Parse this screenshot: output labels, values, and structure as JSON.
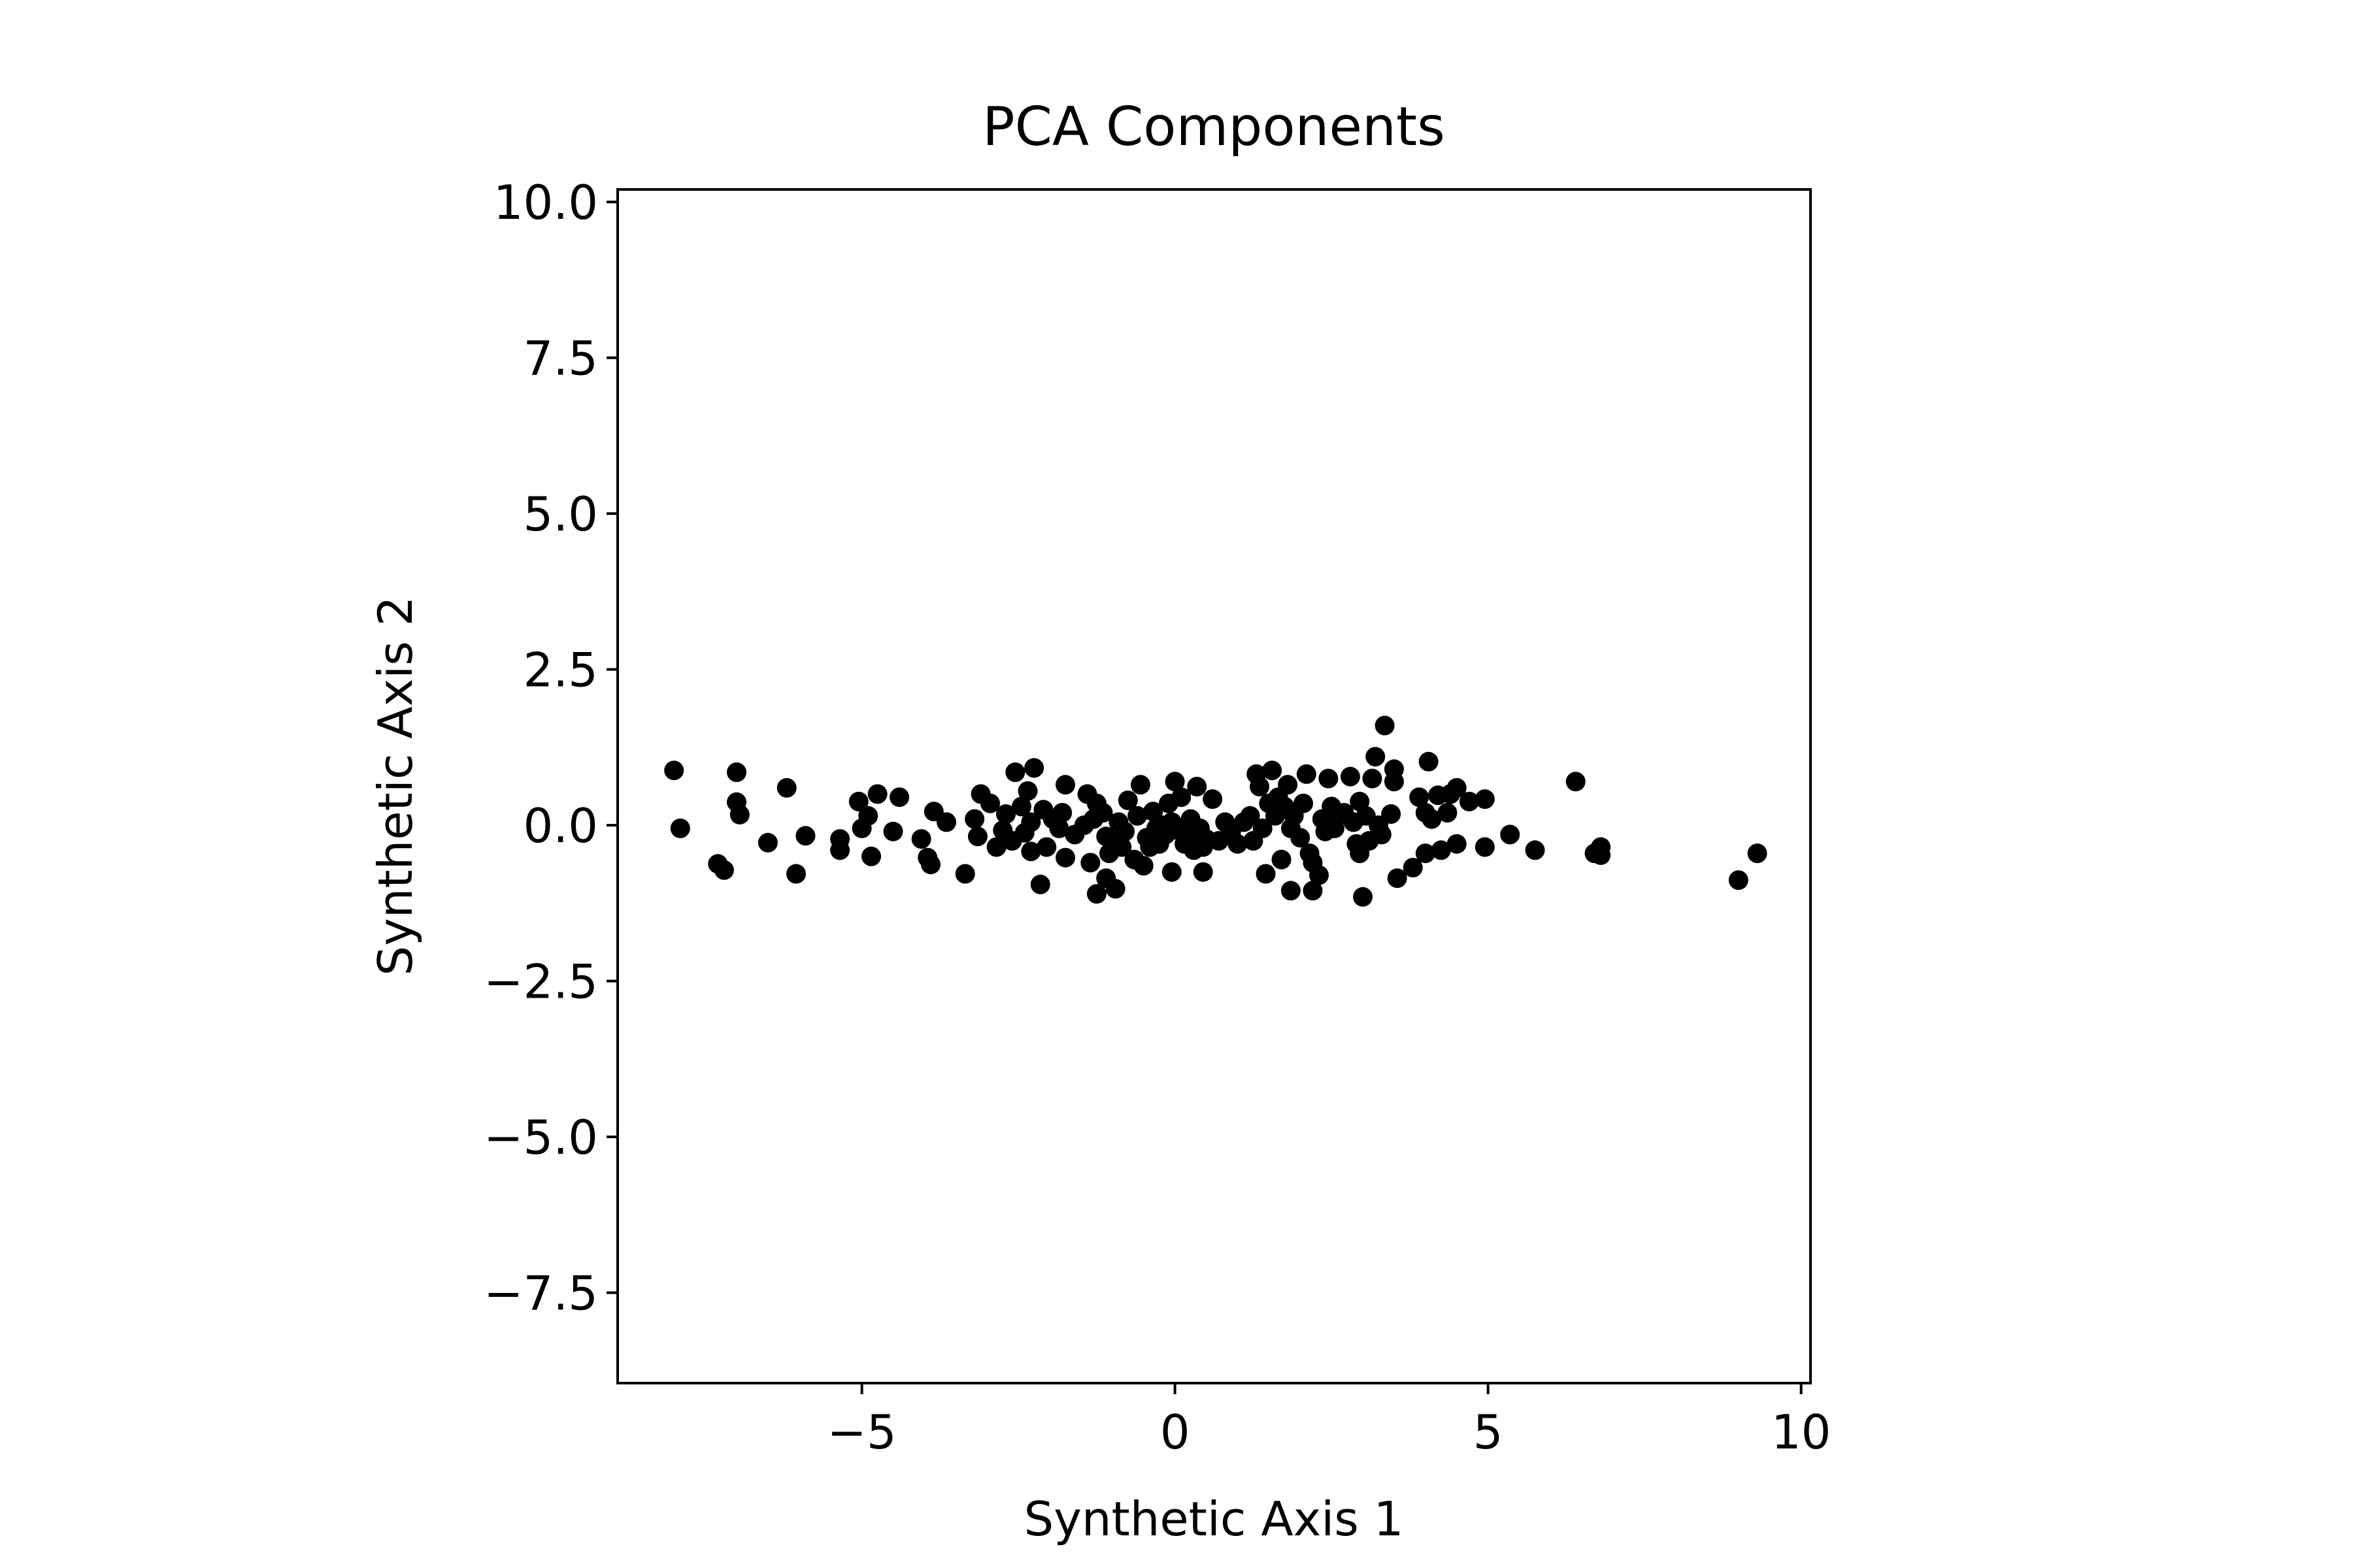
{
  "chart_data": {
    "type": "scatter",
    "title": "PCA Components",
    "xlabel": "Synthetic Axis 1",
    "ylabel": "Synthetic Axis 2",
    "xlim": [
      -8.9,
      10.15
    ],
    "ylim": [
      -8.95,
      10.2
    ],
    "xticks": [
      -5,
      0,
      5,
      10
    ],
    "xtick_labels": [
      "−5",
      "0",
      "5",
      "10"
    ],
    "yticks": [
      -7.5,
      -5.0,
      -2.5,
      0.0,
      2.5,
      5.0,
      7.5,
      10.0
    ],
    "ytick_labels": [
      "−7.5",
      "−5.0",
      "−2.5",
      "0.0",
      "2.5",
      "5.0",
      "7.5",
      "10.0"
    ],
    "grid": false,
    "legend": "none",
    "marker_color": "#000000",
    "points": [
      [
        -8.0,
        0.88
      ],
      [
        -7.9,
        -0.05
      ],
      [
        -7.3,
        -0.62
      ],
      [
        -7.2,
        -0.72
      ],
      [
        -7.0,
        0.85
      ],
      [
        -7.0,
        0.37
      ],
      [
        -6.95,
        0.17
      ],
      [
        -6.5,
        -0.28
      ],
      [
        -6.2,
        0.6
      ],
      [
        -6.05,
        -0.78
      ],
      [
        -5.9,
        -0.17
      ],
      [
        -5.35,
        -0.22
      ],
      [
        -5.35,
        -0.4
      ],
      [
        -5.05,
        0.38
      ],
      [
        -5.0,
        -0.05
      ],
      [
        -4.9,
        0.15
      ],
      [
        -4.85,
        -0.5
      ],
      [
        -4.75,
        0.5
      ],
      [
        -4.5,
        -0.1
      ],
      [
        -4.4,
        0.45
      ],
      [
        -4.05,
        -0.22
      ],
      [
        -3.95,
        -0.52
      ],
      [
        -3.9,
        -0.63
      ],
      [
        -3.85,
        0.22
      ],
      [
        -3.65,
        0.05
      ],
      [
        -3.35,
        -0.78
      ],
      [
        -3.2,
        0.1
      ],
      [
        -3.15,
        -0.18
      ],
      [
        -3.1,
        0.5
      ],
      [
        -2.95,
        0.35
      ],
      [
        -2.85,
        -0.35
      ],
      [
        -2.75,
        -0.08
      ],
      [
        -2.7,
        0.18
      ],
      [
        -2.6,
        -0.25
      ],
      [
        -2.55,
        0.85
      ],
      [
        -2.45,
        0.3
      ],
      [
        -2.4,
        -0.12
      ],
      [
        -2.35,
        0.55
      ],
      [
        -2.3,
        0.05
      ],
      [
        -2.3,
        -0.42
      ],
      [
        -2.25,
        0.92
      ],
      [
        -2.15,
        -0.95
      ],
      [
        -2.1,
        0.25
      ],
      [
        -2.05,
        -0.35
      ],
      [
        -1.95,
        0.1
      ],
      [
        -1.85,
        -0.05
      ],
      [
        -1.8,
        0.2
      ],
      [
        -1.75,
        0.65
      ],
      [
        -1.75,
        -0.52
      ],
      [
        -1.6,
        -0.15
      ],
      [
        -1.45,
        0.0
      ],
      [
        -1.4,
        0.5
      ],
      [
        -1.35,
        -0.6
      ],
      [
        -1.3,
        0.1
      ],
      [
        -1.25,
        0.35
      ],
      [
        -1.25,
        -1.1
      ],
      [
        -1.15,
        0.2
      ],
      [
        -1.1,
        -0.18
      ],
      [
        -1.1,
        -0.85
      ],
      [
        -1.05,
        -0.45
      ],
      [
        -1.0,
        -0.25
      ],
      [
        -0.95,
        -1.02
      ],
      [
        -0.9,
        0.05
      ],
      [
        -0.85,
        -0.35
      ],
      [
        -0.8,
        -0.1
      ],
      [
        -0.75,
        0.4
      ],
      [
        -0.65,
        -0.55
      ],
      [
        -0.6,
        0.15
      ],
      [
        -0.55,
        0.65
      ],
      [
        -0.5,
        -0.65
      ],
      [
        -0.45,
        -0.2
      ],
      [
        -0.4,
        -0.35
      ],
      [
        -0.35,
        0.22
      ],
      [
        -0.3,
        -0.05
      ],
      [
        -0.25,
        -0.3
      ],
      [
        -0.2,
        0.0
      ],
      [
        -0.15,
        -0.15
      ],
      [
        -0.1,
        0.35
      ],
      [
        -0.05,
        -0.75
      ],
      [
        -0.05,
        0.05
      ],
      [
        0.0,
        0.7
      ],
      [
        0.05,
        -0.08
      ],
      [
        0.1,
        0.45
      ],
      [
        0.15,
        -0.3
      ],
      [
        0.2,
        -0.2
      ],
      [
        0.25,
        0.1
      ],
      [
        0.3,
        -0.4
      ],
      [
        0.35,
        0.62
      ],
      [
        0.4,
        -0.05
      ],
      [
        0.45,
        -0.35
      ],
      [
        0.45,
        -0.75
      ],
      [
        0.5,
        -0.22
      ],
      [
        0.6,
        0.42
      ],
      [
        0.7,
        -0.25
      ],
      [
        0.8,
        0.05
      ],
      [
        0.9,
        -0.1
      ],
      [
        1.0,
        -0.3
      ],
      [
        1.1,
        0.05
      ],
      [
        1.2,
        0.15
      ],
      [
        1.25,
        -0.25
      ],
      [
        1.3,
        0.82
      ],
      [
        1.35,
        0.62
      ],
      [
        1.4,
        -0.05
      ],
      [
        1.45,
        -0.78
      ],
      [
        1.5,
        0.35
      ],
      [
        1.55,
        0.88
      ],
      [
        1.6,
        0.15
      ],
      [
        1.65,
        0.45
      ],
      [
        1.7,
        -0.55
      ],
      [
        1.75,
        0.3
      ],
      [
        1.8,
        0.65
      ],
      [
        1.85,
        -1.05
      ],
      [
        1.85,
        -0.05
      ],
      [
        1.9,
        0.15
      ],
      [
        2.0,
        -0.2
      ],
      [
        2.05,
        0.35
      ],
      [
        2.1,
        0.82
      ],
      [
        2.15,
        -0.45
      ],
      [
        2.2,
        -0.6
      ],
      [
        2.2,
        -1.05
      ],
      [
        2.3,
        -0.8
      ],
      [
        2.35,
        0.1
      ],
      [
        2.4,
        -0.1
      ],
      [
        2.45,
        0.75
      ],
      [
        2.5,
        0.3
      ],
      [
        2.55,
        -0.05
      ],
      [
        2.6,
        0.15
      ],
      [
        2.7,
        0.2
      ],
      [
        2.8,
        0.78
      ],
      [
        2.85,
        0.05
      ],
      [
        2.9,
        -0.3
      ],
      [
        2.95,
        -0.45
      ],
      [
        2.95,
        0.38
      ],
      [
        3.0,
        -1.15
      ],
      [
        3.05,
        0.15
      ],
      [
        3.1,
        -0.25
      ],
      [
        3.15,
        0.75
      ],
      [
        3.2,
        1.1
      ],
      [
        3.25,
        0.0
      ],
      [
        3.3,
        -0.15
      ],
      [
        3.35,
        1.6
      ],
      [
        3.45,
        0.18
      ],
      [
        3.5,
        0.9
      ],
      [
        3.5,
        0.7
      ],
      [
        3.55,
        -0.85
      ],
      [
        3.8,
        -0.68
      ],
      [
        3.9,
        0.45
      ],
      [
        4.0,
        -0.45
      ],
      [
        4.0,
        0.2
      ],
      [
        4.05,
        1.02
      ],
      [
        4.1,
        0.1
      ],
      [
        4.2,
        0.48
      ],
      [
        4.25,
        -0.4
      ],
      [
        4.35,
        0.2
      ],
      [
        4.4,
        0.5
      ],
      [
        4.5,
        -0.3
      ],
      [
        4.5,
        0.6
      ],
      [
        4.7,
        0.38
      ],
      [
        4.95,
        -0.35
      ],
      [
        4.95,
        0.42
      ],
      [
        5.35,
        -0.15
      ],
      [
        5.75,
        -0.4
      ],
      [
        6.4,
        0.7
      ],
      [
        6.7,
        -0.45
      ],
      [
        6.8,
        -0.35
      ],
      [
        6.8,
        -0.48
      ],
      [
        9.0,
        -0.88
      ],
      [
        9.3,
        -0.45
      ]
    ]
  }
}
